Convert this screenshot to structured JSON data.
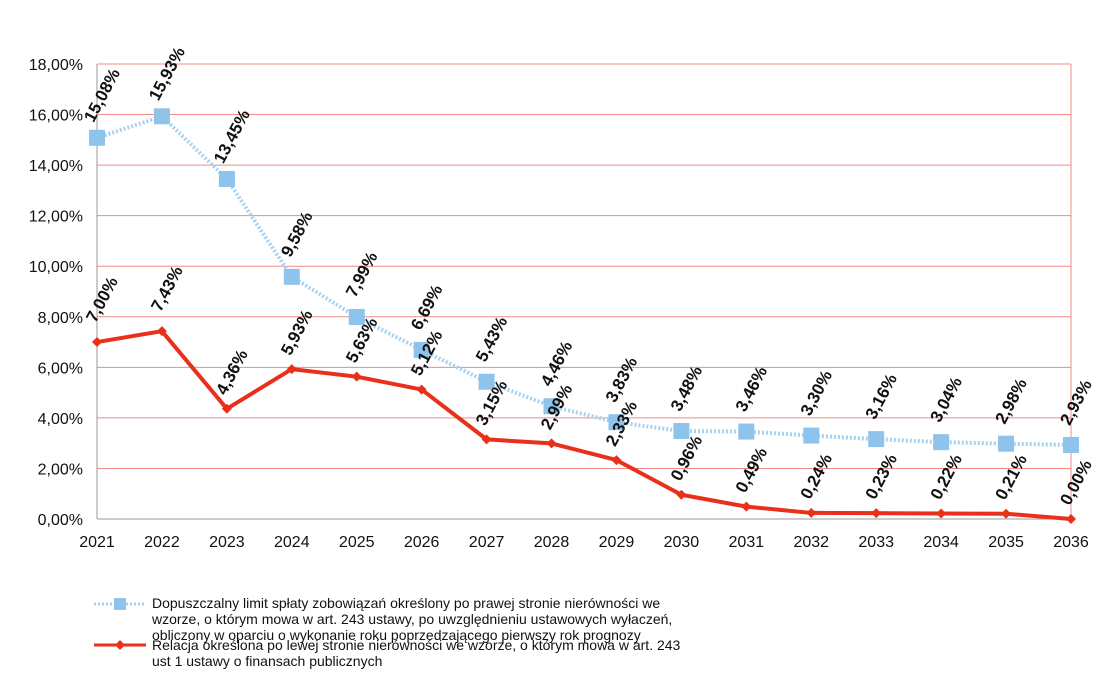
{
  "colors": {
    "series1": "#a6d2f0",
    "series1_marker": "#8ec3ec",
    "series2": "#e8301a",
    "gridline": "#f08a8a",
    "axis": "#9a9a9a",
    "label": "#111111"
  },
  "chart_data": {
    "type": "line",
    "categories": [
      "2021",
      "2022",
      "2023",
      "2024",
      "2025",
      "2026",
      "2027",
      "2028",
      "2029",
      "2030",
      "2031",
      "2032",
      "2033",
      "2034",
      "2035",
      "2036"
    ],
    "series": [
      {
        "name": "Dopuszczalny limit spłaty zobowiązań określony po prawej stronie nierówności we wzorze, o którym mowa w art. 243 ustawy, po uwzględnieniu ustawowych wyłaczeń, obliczony w oparciu o wykonanie roku poprzedzającego pierwszy rok prognozy",
        "values": [
          15.08,
          15.93,
          13.45,
          9.58,
          7.99,
          6.69,
          5.43,
          4.46,
          3.83,
          3.48,
          3.46,
          3.3,
          3.16,
          3.04,
          2.98,
          2.93
        ],
        "labels": [
          "15,08%",
          "15,93%",
          "13,45%",
          "9,58%",
          "7,99%",
          "6,69%",
          "5,43%",
          "4,46%",
          "3,83%",
          "3,48%",
          "3,46%",
          "3,30%",
          "3,16%",
          "3,04%",
          "2,98%",
          "2,93%"
        ]
      },
      {
        "name": "Relacja określona po lewej stronie nierówności we wzorze, o którym mowa w art. 243 ust 1 ustawy o finansach publicznych",
        "values": [
          7.0,
          7.43,
          4.36,
          5.93,
          5.63,
          5.12,
          3.15,
          2.99,
          2.33,
          0.96,
          0.49,
          0.24,
          0.23,
          0.22,
          0.21,
          0.0
        ],
        "labels": [
          "7,00%",
          "7,43%",
          "4,36%",
          "5,93%",
          "5,63%",
          "5,12%",
          "3,15%",
          "2,99%",
          "2,33%",
          "0,96%",
          "0,49%",
          "0,24%",
          "0,23%",
          "0,22%",
          "0,21%",
          "0,00%"
        ]
      }
    ],
    "ylim": [
      0,
      18
    ],
    "ytick_values": [
      0,
      2,
      4,
      6,
      8,
      10,
      12,
      14,
      16,
      18
    ],
    "ytick_labels": [
      "0,00%",
      "2,00%",
      "4,00%",
      "6,00%",
      "8,00%",
      "10,00%",
      "12,00%",
      "14,00%",
      "16,00%",
      "18,00%"
    ],
    "grid": true,
    "legend_position": "bottom"
  },
  "legend": {
    "series1_text": "Dopuszczalny limit spłaty zobowiązań określony po prawej stronie nierówności we\nwzorze, o którym mowa w art. 243 ustawy, po uwzględnieniu ustawowych wyłaczeń,\nobliczony w oparciu o wykonanie roku poprzedzającego pierwszy rok prognozy",
    "series2_text": "Relacja określona po lewej stronie nierówności we wzorze, o którym mowa w art. 243\nust 1 ustawy o finansach publicznych"
  }
}
